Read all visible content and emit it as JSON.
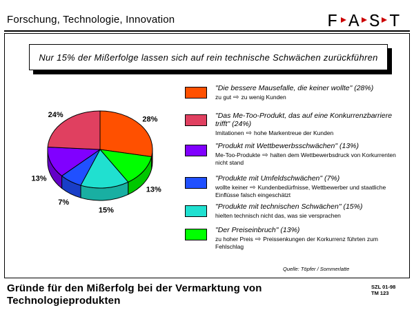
{
  "header": {
    "title": "Forschung, Technologie, Innovation"
  },
  "logo": {
    "letters": [
      "F",
      "A",
      "S",
      "T"
    ],
    "arrow_color": "#cc0000"
  },
  "callout": "Nur 15% der Mißerfolge lassen sich auf rein technische Schwächen zurückführen",
  "chart_data": {
    "type": "pie",
    "slices": [
      {
        "value": 28,
        "label": "28%",
        "color": "#ff5000",
        "title": "\"Die bessere Mausefalle, die keiner wollte\" (28%)",
        "desc_parts": [
          "zu gut",
          "zu wenig Kunden"
        ]
      },
      {
        "value": 13,
        "label": "13%",
        "color": "#00ff00",
        "title": "\"Der Preiseinbruch\" (13%)",
        "desc_parts": [
          "zu hoher Preis",
          "Preissenkungen der Korkurrenz führten zum Fehlschlag"
        ]
      },
      {
        "value": 15,
        "label": "15%",
        "color": "#20e0d0",
        "title": "\"Produkte mit technischen Schwächen\" (15%)",
        "desc_parts": [
          "hielten technisch nicht das, was sie versprachen"
        ]
      },
      {
        "value": 7,
        "label": "7%",
        "color": "#2050ff",
        "title": "\"Produkte mit Umfeldschwächen\" (7%)",
        "desc_parts": [
          "wollte keiner",
          "Kundenbedürfnisse, Wettbewerber und staatliche Einflüsse falsch eingeschätzt"
        ]
      },
      {
        "value": 13,
        "label": "13%",
        "color": "#8000ff",
        "title": "\"Produkt mit Wettbewerbsschwächen\" (13%)",
        "desc_parts": [
          "Me-Too-Produkte",
          "halten dem Wettbewerbsdruck von Korkurrenten nicht stand"
        ]
      },
      {
        "value": 24,
        "label": "24%",
        "color": "#e04060",
        "title": "\"Das Me-Too-Produkt, das auf eine Konkurrenzbarriere trifft\" (24%)",
        "desc_parts": [
          "Imitationen",
          "hohe Markentreue der Kunden"
        ]
      }
    ],
    "legend_order": [
      0,
      5,
      4,
      3,
      2,
      1
    ]
  },
  "source": "Quelle: Töpfer / Sommerlatte",
  "footer": {
    "title": "Gründe für den Mißerfolg bei der Vermarktung von Technologieprodukten",
    "code_line1": "SZL 01-98",
    "code_line2": "TM 123"
  }
}
